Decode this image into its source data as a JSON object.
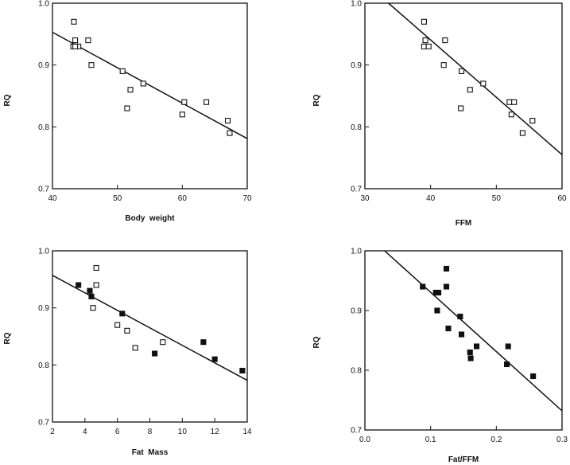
{
  "chart_data": [
    {
      "type": "scatter",
      "xlabel": "Body  weight",
      "ylabel": "RQ",
      "xlim": [
        40,
        70
      ],
      "ylim": [
        0.7,
        1.0
      ],
      "xticks": [
        40,
        50,
        60,
        70
      ],
      "yticks": [
        0.7,
        0.8,
        0.9,
        1.0
      ],
      "marker": "open-square",
      "grid": false,
      "x": [
        43.3,
        43.5,
        43.2,
        44.0,
        43.5,
        45.5,
        46.0,
        50.8,
        51.5,
        52.0,
        54.0,
        60.0,
        60.3,
        63.7,
        67.0,
        67.3
      ],
      "y": [
        0.97,
        0.94,
        0.93,
        0.93,
        0.93,
        0.94,
        0.9,
        0.89,
        0.83,
        0.86,
        0.87,
        0.82,
        0.84,
        0.84,
        0.81,
        0.79
      ],
      "fit_line": {
        "x": [
          40,
          70
        ],
        "y": [
          0.953,
          0.781
        ]
      }
    },
    {
      "type": "scatter",
      "xlabel": "FFM",
      "ylabel": "RQ",
      "xlim": [
        30,
        60
      ],
      "ylim": [
        0.7,
        1.0
      ],
      "xticks": [
        30,
        40,
        50,
        60
      ],
      "yticks": [
        0.7,
        0.8,
        0.9,
        1.0
      ],
      "marker": "open-square",
      "grid": false,
      "x": [
        39.0,
        39.2,
        39.0,
        39.7,
        42.2,
        42.0,
        44.7,
        44.6,
        46.0,
        48.0,
        52.0,
        52.3,
        52.7,
        54.0,
        55.5
      ],
      "y": [
        0.97,
        0.94,
        0.93,
        0.93,
        0.94,
        0.9,
        0.89,
        0.83,
        0.86,
        0.87,
        0.84,
        0.82,
        0.84,
        0.79,
        0.81
      ],
      "fit_line": {
        "x": [
          33.6,
          60
        ],
        "y": [
          1.0,
          0.755
        ]
      }
    },
    {
      "type": "scatter",
      "xlabel": "Fat  Mass",
      "ylabel": "RQ",
      "xlim": [
        2,
        14
      ],
      "ylim": [
        0.7,
        1.0
      ],
      "xticks": [
        2,
        4,
        6,
        8,
        10,
        12,
        14
      ],
      "yticks": [
        0.7,
        0.8,
        0.9,
        1.0
      ],
      "marker": "mixed-square",
      "grid": false,
      "x": [
        3.6,
        4.3,
        4.4,
        4.7,
        4.7,
        4.5,
        6.0,
        6.3,
        6.6,
        7.1,
        8.3,
        8.8,
        11.3,
        12.0,
        13.7
      ],
      "y": [
        0.94,
        0.93,
        0.92,
        0.97,
        0.94,
        0.9,
        0.87,
        0.89,
        0.86,
        0.83,
        0.82,
        0.84,
        0.84,
        0.81,
        0.79
      ],
      "filled": [
        true,
        true,
        true,
        false,
        false,
        false,
        false,
        true,
        false,
        false,
        true,
        false,
        true,
        true,
        true
      ],
      "fit_line": {
        "x": [
          2,
          14
        ],
        "y": [
          0.957,
          0.773
        ]
      }
    },
    {
      "type": "scatter",
      "xlabel": "Fat/FFM",
      "ylabel": "RQ",
      "xlim": [
        0.0,
        0.3
      ],
      "ylim": [
        0.7,
        1.0
      ],
      "xticks": [
        0.0,
        0.1,
        0.2,
        0.3
      ],
      "xtick_labels": [
        "0.0",
        "0.1",
        "0.2",
        "0.3"
      ],
      "yticks": [
        0.7,
        0.8,
        0.9,
        1.0
      ],
      "marker": "filled-square",
      "grid": false,
      "x": [
        0.088,
        0.108,
        0.112,
        0.11,
        0.124,
        0.124,
        0.127,
        0.145,
        0.147,
        0.16,
        0.161,
        0.17,
        0.216,
        0.218,
        0.256
      ],
      "y": [
        0.94,
        0.93,
        0.93,
        0.9,
        0.97,
        0.94,
        0.87,
        0.89,
        0.86,
        0.83,
        0.82,
        0.84,
        0.81,
        0.84,
        0.79
      ],
      "fit_line": {
        "x": [
          0.03,
          0.3
        ],
        "y": [
          1.0,
          0.732
        ]
      }
    }
  ]
}
